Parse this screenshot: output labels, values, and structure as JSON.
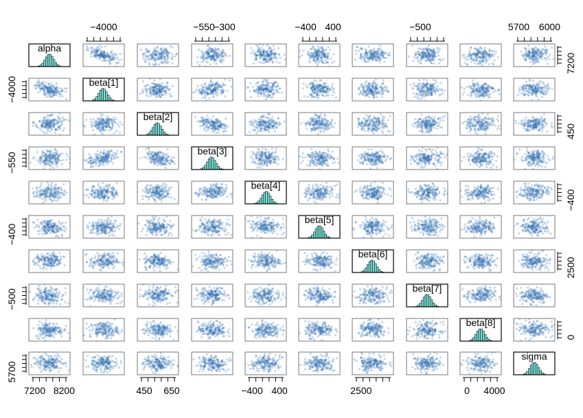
{
  "chart_data": {
    "type": "scatter",
    "variables": [
      "alpha",
      "beta[1]",
      "beta[2]",
      "beta[3]",
      "beta[4]",
      "beta[5]",
      "beta[6]",
      "beta[7]",
      "beta[8]",
      "sigma"
    ],
    "title": "",
    "diagonal": "histogram",
    "off_diagonal": "density scatter",
    "colors": {
      "points": "#2b6cb0",
      "histogram_fill": "#7fe6dc",
      "histogram_stroke": "#000000",
      "box": "#555555"
    },
    "axes": {
      "top": [
        {
          "panel": 1,
          "ticks": [
            {
              "v": -4000,
              "label": "−4000"
            }
          ],
          "range": [
            -4500,
            -3500
          ]
        },
        {
          "panel": 3,
          "ticks": [
            {
              "v": -550,
              "label": "−550"
            },
            {
              "v": -300,
              "label": "−300"
            }
          ],
          "range": [
            -700,
            -200
          ]
        },
        {
          "panel": 5,
          "ticks": [
            {
              "v": -400,
              "label": "−400"
            },
            {
              "v": 400,
              "label": "400"
            }
          ],
          "range": [
            -600,
            600
          ]
        },
        {
          "panel": 7,
          "ticks": [
            {
              "v": -500,
              "label": "−500"
            }
          ],
          "range": [
            -540,
            -420
          ]
        },
        {
          "panel": 9,
          "ticks": [
            {
              "v": 5700,
              "label": "5700"
            },
            {
              "v": 6000,
              "label": "6000"
            }
          ],
          "range": [
            5650,
            6050
          ]
        }
      ],
      "bottom": [
        {
          "panel": 0,
          "ticks": [
            {
              "v": 7200,
              "label": "7200"
            },
            {
              "v": 8200,
              "label": "8200"
            }
          ],
          "range": [
            7000,
            8400
          ]
        },
        {
          "panel": 2,
          "ticks": [
            {
              "v": 450,
              "label": "450"
            },
            {
              "v": 650,
              "label": "650"
            }
          ],
          "range": [
            400,
            700
          ]
        },
        {
          "panel": 4,
          "ticks": [
            {
              "v": -400,
              "label": "−400"
            },
            {
              "v": 400,
              "label": "400"
            }
          ],
          "range": [
            -600,
            600
          ]
        },
        {
          "panel": 6,
          "ticks": [
            {
              "v": 2500,
              "label": "2500"
            }
          ],
          "range": [
            2200,
            3600
          ]
        },
        {
          "panel": 8,
          "ticks": [
            {
              "v": 0,
              "label": "0"
            },
            {
              "v": 4000,
              "label": "4000"
            }
          ],
          "range": [
            -1000,
            5000
          ]
        }
      ],
      "left": [
        {
          "panel": 1,
          "ticks": [
            {
              "v": -4000,
              "label": "−4000"
            }
          ],
          "range": [
            -4500,
            -3500
          ]
        },
        {
          "panel": 3,
          "ticks": [
            {
              "v": -550,
              "label": "−550"
            }
          ],
          "range": [
            -700,
            -200
          ]
        },
        {
          "panel": 5,
          "ticks": [
            {
              "v": -400,
              "label": "−400"
            }
          ],
          "range": [
            -600,
            600
          ]
        },
        {
          "panel": 7,
          "ticks": [
            {
              "v": -500,
              "label": "−500"
            }
          ],
          "range": [
            -540,
            -420
          ]
        },
        {
          "panel": 9,
          "ticks": [
            {
              "v": 5700,
              "label": "5700"
            }
          ],
          "range": [
            5650,
            6050
          ]
        }
      ],
      "right": [
        {
          "panel": 0,
          "ticks": [
            {
              "v": 7200,
              "label": "7200"
            }
          ],
          "range": [
            7000,
            8400
          ]
        },
        {
          "panel": 2,
          "ticks": [
            {
              "v": 450,
              "label": "450"
            }
          ],
          "range": [
            400,
            700
          ]
        },
        {
          "panel": 4,
          "ticks": [
            {
              "v": -400,
              "label": "−400"
            }
          ],
          "range": [
            -600,
            600
          ]
        },
        {
          "panel": 6,
          "ticks": [
            {
              "v": 2500,
              "label": "2500"
            }
          ],
          "range": [
            2200,
            3600
          ]
        },
        {
          "panel": 8,
          "ticks": [
            {
              "v": 0,
              "label": "0"
            }
          ],
          "range": [
            -1000,
            5000
          ]
        }
      ]
    },
    "grid": false
  }
}
